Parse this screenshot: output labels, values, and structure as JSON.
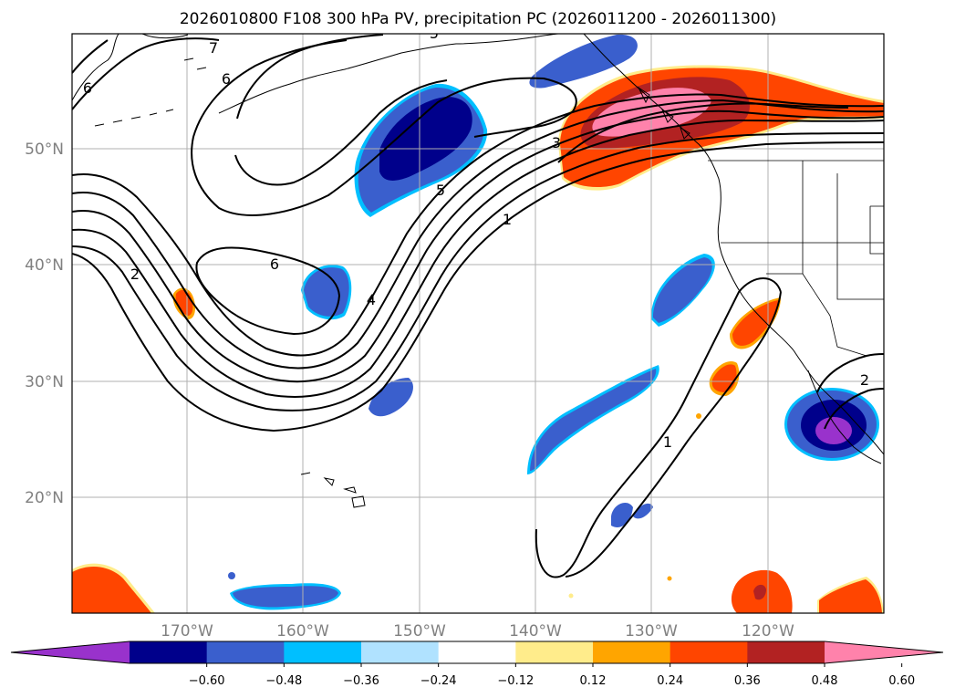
{
  "title": "2026010800 F108 300 hPa PV, precipitation PC (2026011200 - 2026011300)",
  "lat_labels": [
    "50°N",
    "40°N",
    "30°N",
    "20°N"
  ],
  "lon_labels": [
    "170°W",
    "160°W",
    "150°W",
    "140°W",
    "130°W",
    "120°W"
  ],
  "colorbar": {
    "ticks": [
      "−0.60",
      "−0.48",
      "−0.36",
      "−0.24",
      "−0.12",
      "0.12",
      "0.24",
      "0.36",
      "0.48",
      "0.60"
    ],
    "colors": [
      "#9932cc",
      "#00008b",
      "#3a5fcd",
      "#00bfff",
      "#b0e2ff",
      "#ffffff",
      "#ffec8b",
      "#ffa500",
      "#ff4500",
      "#b22222",
      "#ff82ab"
    ]
  },
  "pv_contour_labels": [
    "7",
    "6",
    "6",
    "6",
    "5",
    "5",
    "4",
    "3",
    "2",
    "2",
    "1",
    "1"
  ],
  "colors": {
    "negative_core": "#00008b",
    "negative_mid": "#3a5fcd",
    "negative_light": "#00bfff",
    "positive_outer": "#ff4500",
    "positive_mid": "#b22222",
    "positive_core": "#ff82ab"
  }
}
